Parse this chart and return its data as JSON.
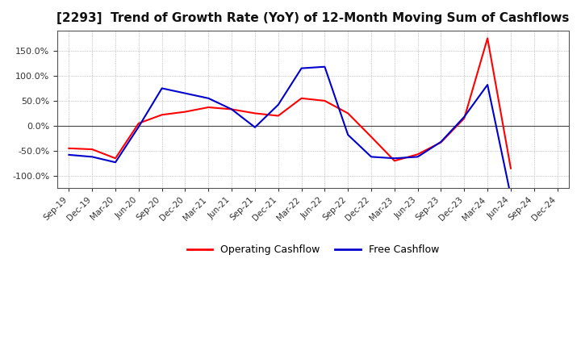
{
  "title": "[2293]  Trend of Growth Rate (YoY) of 12-Month Moving Sum of Cashflows",
  "x_labels": [
    "Sep-19",
    "Dec-19",
    "Mar-20",
    "Jun-20",
    "Sep-20",
    "Dec-20",
    "Mar-21",
    "Jun-21",
    "Sep-21",
    "Dec-21",
    "Mar-22",
    "Jun-22",
    "Sep-22",
    "Dec-22",
    "Mar-23",
    "Jun-23",
    "Sep-23",
    "Dec-23",
    "Mar-24",
    "Jun-24",
    "Sep-24",
    "Dec-24"
  ],
  "operating_cashflow": [
    -45,
    -47,
    -65,
    5,
    22,
    28,
    37,
    33,
    25,
    20,
    55,
    50,
    25,
    -22,
    -70,
    -57,
    -33,
    15,
    175,
    -85,
    null,
    null
  ],
  "free_cashflow": [
    -58,
    -62,
    -73,
    -2,
    75,
    65,
    55,
    33,
    -3,
    42,
    115,
    118,
    -18,
    -62,
    -65,
    -62,
    -32,
    18,
    82,
    -140,
    null,
    null
  ],
  "ylim": [
    -125,
    190
  ],
  "yticks": [
    -100,
    -50,
    0,
    50,
    100,
    150
  ],
  "op_color": "#ff0000",
  "free_color": "#0000cc",
  "background_color": "#ffffff",
  "grid_color": "#999999",
  "legend_op": "Operating Cashflow",
  "legend_free": "Free Cashflow",
  "title_fontsize": 11
}
